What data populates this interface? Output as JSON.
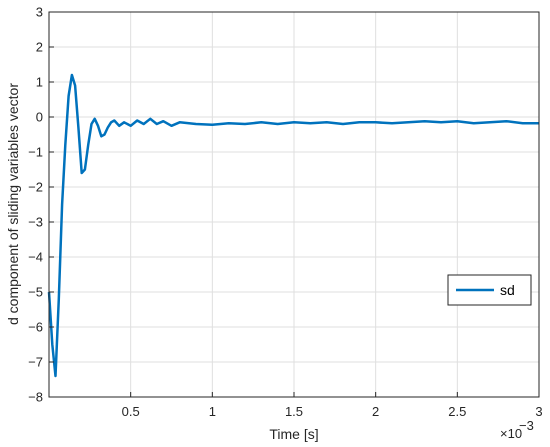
{
  "chart_data": {
    "type": "line",
    "xlabel": "Time [s]",
    "ylabel": "d component of sliding variables vector",
    "x_exponent_label": "×10",
    "x_exponent_power": "−3",
    "xlim": [
      0,
      3
    ],
    "ylim": [
      -8,
      3
    ],
    "x_ticks": [
      0.5,
      1,
      1.5,
      2,
      2.5,
      3
    ],
    "x_tick_labels": [
      "0.5",
      "1",
      "1.5",
      "2",
      "2.5",
      "3"
    ],
    "y_ticks": [
      3,
      2,
      1,
      0,
      -1,
      -2,
      -3,
      -4,
      -5,
      -6,
      -7,
      -8
    ],
    "y_tick_labels": [
      "3",
      "2",
      "1",
      "0",
      "−1",
      "−2",
      "−3",
      "−4",
      "−5",
      "−6",
      "−7",
      "−8"
    ],
    "grid": true,
    "legend_position": "center-right",
    "series": [
      {
        "name": "sd",
        "color": "#0072BD",
        "x": [
          0.0,
          0.02,
          0.04,
          0.06,
          0.08,
          0.1,
          0.12,
          0.14,
          0.16,
          0.18,
          0.2,
          0.22,
          0.24,
          0.26,
          0.28,
          0.3,
          0.32,
          0.34,
          0.36,
          0.38,
          0.4,
          0.43,
          0.46,
          0.5,
          0.54,
          0.58,
          0.62,
          0.66,
          0.7,
          0.75,
          0.8,
          0.9,
          1.0,
          1.1,
          1.2,
          1.3,
          1.4,
          1.5,
          1.6,
          1.7,
          1.8,
          1.9,
          2.0,
          2.1,
          2.2,
          2.3,
          2.4,
          2.5,
          2.6,
          2.7,
          2.8,
          2.9,
          3.0
        ],
        "y": [
          -5.0,
          -6.5,
          -7.4,
          -5.2,
          -2.5,
          -0.8,
          0.6,
          1.2,
          0.9,
          -0.3,
          -1.6,
          -1.5,
          -0.8,
          -0.2,
          -0.05,
          -0.25,
          -0.55,
          -0.5,
          -0.3,
          -0.15,
          -0.1,
          -0.25,
          -0.15,
          -0.25,
          -0.1,
          -0.2,
          -0.05,
          -0.2,
          -0.12,
          -0.25,
          -0.15,
          -0.2,
          -0.22,
          -0.18,
          -0.2,
          -0.15,
          -0.2,
          -0.15,
          -0.18,
          -0.15,
          -0.2,
          -0.15,
          -0.15,
          -0.18,
          -0.15,
          -0.12,
          -0.15,
          -0.12,
          -0.18,
          -0.15,
          -0.12,
          -0.18,
          -0.18
        ]
      }
    ]
  }
}
